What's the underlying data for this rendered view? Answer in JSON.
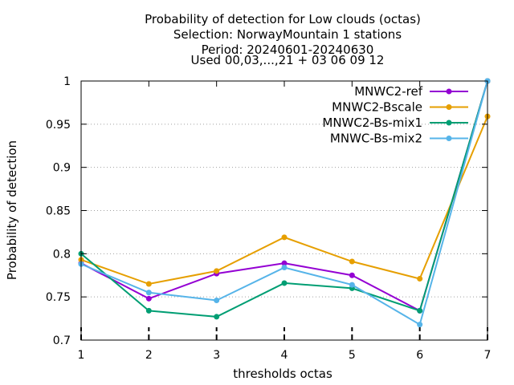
{
  "chart_data": {
    "type": "line",
    "title_lines": [
      "Probability of detection  for Low clouds (octas)",
      "Selection: NorwayMountain      1 stations",
      "Period: 20240601-20240630",
      "Used 00,03,...,21 + 03 06 09 12"
    ],
    "xlabel": "thresholds octas",
    "ylabel": "Probability of detection",
    "x": [
      1,
      2,
      3,
      4,
      5,
      6,
      7
    ],
    "xlim": [
      1,
      7
    ],
    "ylim": [
      0.7,
      1.0
    ],
    "yticks": [
      0.7,
      0.75,
      0.8,
      0.85,
      0.9,
      0.95,
      1.0
    ],
    "ytick_labels": [
      "0.7",
      "0.75",
      "0.8",
      "0.85",
      "0.9",
      "0.95",
      "1"
    ],
    "xtick_labels": [
      "1",
      "2",
      "3",
      "4",
      "5",
      "6",
      "7"
    ],
    "grid": "dotted horizontal",
    "legend_position": "top-right",
    "series": [
      {
        "name": "MNWC2-ref",
        "color": "#9400d3",
        "values": [
          0.789,
          0.748,
          0.777,
          0.789,
          0.775,
          0.734,
          1.0
        ]
      },
      {
        "name": "MNWC2-Bscale",
        "color": "#e69f00",
        "values": [
          0.793,
          0.765,
          0.78,
          0.819,
          0.791,
          0.771,
          0.959
        ]
      },
      {
        "name": "MNWC2-Bs-mix1",
        "color": "#009e73",
        "values": [
          0.8,
          0.734,
          0.727,
          0.766,
          0.76,
          0.734,
          1.0
        ]
      },
      {
        "name": "MNWC-Bs-mix2",
        "color": "#56b4e9",
        "values": [
          0.788,
          0.755,
          0.746,
          0.784,
          0.764,
          0.718,
          1.0
        ]
      }
    ]
  }
}
